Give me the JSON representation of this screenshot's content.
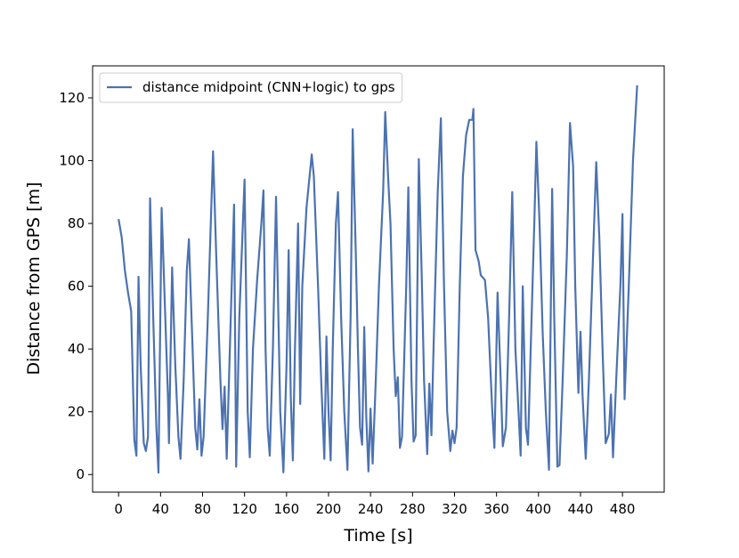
{
  "chart_data": {
    "type": "line",
    "x_label": "Time [s]",
    "y_label": "Distance from GPS [m]",
    "legend": "upper left",
    "xlim": [
      -24.75,
      519.75
    ],
    "ylim": [
      -5.6,
      130.2
    ],
    "xticks": [
      0,
      40,
      80,
      120,
      160,
      200,
      240,
      280,
      320,
      360,
      400,
      440,
      480
    ],
    "yticks": [
      0,
      20,
      40,
      60,
      80,
      100,
      120
    ],
    "x": [
      0,
      3,
      6,
      9,
      12,
      15,
      17,
      19,
      21,
      24,
      26,
      28,
      30,
      33,
      36,
      38,
      41,
      44,
      47,
      48,
      51,
      54,
      57,
      59,
      62,
      65,
      67,
      70,
      73,
      75,
      77,
      79,
      81,
      85,
      90,
      93,
      97,
      99,
      101,
      103,
      106,
      110,
      112,
      115,
      120,
      123,
      125,
      128,
      132,
      136,
      138,
      140,
      142,
      144,
      147,
      150,
      154,
      157,
      160,
      162,
      164,
      166,
      168,
      171,
      173,
      175,
      179,
      184,
      186,
      190,
      193,
      196,
      198,
      200,
      202,
      204,
      207,
      209,
      212,
      215,
      218,
      221,
      223,
      226,
      228,
      230,
      232,
      234,
      236,
      238,
      240,
      242,
      245,
      248,
      252,
      254,
      257,
      259,
      262,
      264,
      266,
      268,
      270,
      274,
      276,
      279,
      281,
      283,
      286,
      289,
      291,
      294,
      296,
      298,
      300,
      304,
      307,
      310,
      313,
      316,
      318,
      320,
      322,
      325,
      328,
      331,
      334,
      337,
      338,
      340,
      343,
      345,
      349,
      352,
      356,
      358,
      361,
      364,
      366,
      369,
      372,
      375,
      378,
      381,
      383,
      385,
      388,
      390,
      393,
      396,
      398,
      401,
      404,
      407,
      410,
      413,
      415,
      418,
      420,
      423,
      427,
      430,
      433,
      435,
      438,
      440,
      442,
      445,
      448,
      452,
      455,
      458,
      461,
      464,
      467,
      469,
      471,
      474,
      478,
      480,
      482,
      486,
      490,
      494
    ],
    "series": [
      {
        "name": "distance midpoint (CNN+logic) to gps",
        "color": "#4c72b0",
        "values": [
          81.4,
          75.5,
          65,
          58,
          52,
          11,
          6,
          63,
          35,
          10,
          7.5,
          12,
          88,
          50,
          15,
          0.6,
          85,
          55,
          25,
          10,
          66,
          35,
          12,
          5,
          30,
          65,
          75,
          45,
          15,
          8,
          24,
          6,
          12,
          50,
          103,
          70,
          30,
          14.5,
          28,
          5,
          40,
          86,
          2.5,
          50,
          94,
          20,
          5.5,
          40,
          62,
          80,
          90.5,
          40,
          15,
          6,
          40,
          88.5,
          20,
          0.7,
          35,
          71.5,
          25,
          4.5,
          40,
          80,
          22.5,
          60,
          85,
          102,
          95,
          60,
          30,
          5,
          44,
          20,
          4.5,
          40,
          80,
          90,
          50,
          20,
          1.5,
          50,
          110,
          70,
          40,
          15,
          9.5,
          47,
          18,
          1,
          21,
          3.5,
          30,
          60,
          90,
          115.5,
          93,
          80,
          40,
          25,
          31,
          8.5,
          12,
          60,
          91.5,
          30,
          10.5,
          12.5,
          100.5,
          60,
          30,
          6.5,
          29,
          12.5,
          40,
          90,
          113.5,
          60,
          20,
          7.5,
          14,
          10,
          15,
          60,
          95,
          108,
          113,
          113,
          116.5,
          71.5,
          68,
          63.5,
          62,
          50,
          20,
          8.5,
          58,
          30,
          9,
          15,
          50,
          90,
          40,
          20,
          6,
          60,
          15,
          9.5,
          45,
          80,
          106,
          80,
          45,
          20,
          1.5,
          91,
          50,
          2.5,
          3,
          30,
          70,
          112,
          98,
          60,
          26,
          45.5,
          25,
          5,
          30,
          70,
          99.5,
          75,
          40,
          10,
          13,
          25.5,
          5.5,
          30,
          60,
          83,
          24,
          60,
          100,
          124
        ]
      }
    ]
  }
}
